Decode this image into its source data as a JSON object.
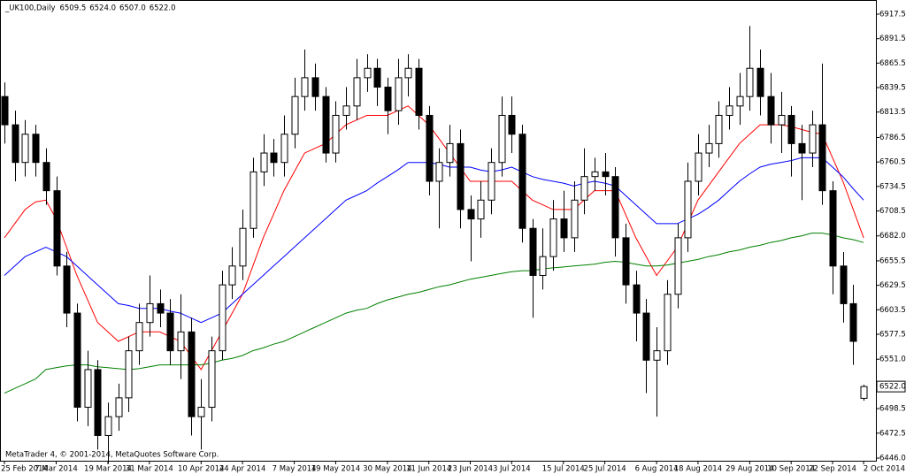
{
  "chart_data": {
    "type": "candlestick",
    "symbol": "_UK100,Daily",
    "header_values": [
      "6509.5",
      "6524.0",
      "6507.0",
      "6522.0"
    ],
    "copyright": "MetaTrader 4, © 2001-2014, MetaQuotes Software Corp.",
    "last_price_label": "6522.0",
    "categories": [
      "25 Feb 2014",
      null,
      null,
      null,
      null,
      "7 Mar 2014",
      null,
      null,
      null,
      null,
      "19 Mar 2014",
      null,
      null,
      null,
      "31 Mar 2014",
      null,
      null,
      null,
      null,
      "10 Apr 2014",
      null,
      null,
      null,
      "24 Apr 2014",
      null,
      null,
      null,
      null,
      "7 May 2014",
      null,
      null,
      null,
      "19 May 2014",
      null,
      null,
      null,
      null,
      "30 May 2014",
      null,
      null,
      null,
      "11 Jun 2014",
      null,
      null,
      null,
      "23 Jun 2014",
      null,
      null,
      null,
      "3 Jul 2014",
      null,
      null,
      null,
      null,
      "15 Jul 2014",
      null,
      null,
      null,
      "25 Jul 2014",
      null,
      null,
      null,
      null,
      "6 Aug 2014",
      null,
      null,
      null,
      "18 Aug 2014",
      null,
      null,
      null,
      null,
      "29 Aug 2014",
      null,
      null,
      null,
      "10 Sep 2014",
      null,
      null,
      null,
      "22 Sep 2014",
      null,
      null,
      "2 Oct 2014"
    ],
    "open": [
      6830,
      6800,
      6760,
      6790,
      6760,
      6730,
      6650,
      6600,
      6500,
      6540,
      6470,
      6490,
      6510,
      6560,
      6590,
      6610,
      6600,
      6560,
      6580,
      6490,
      6500,
      6560,
      6630,
      6650,
      6690,
      6750,
      6770,
      6760,
      6790,
      6830,
      6850,
      6830,
      6770,
      6810,
      6820,
      6850,
      6860,
      6840,
      6815,
      6850,
      6860,
      6810,
      6740,
      6760,
      6780,
      6710,
      6700,
      6720,
      6760,
      6810,
      6790,
      6690,
      6640,
      6660,
      6700,
      6680,
      6720,
      6745,
      6750,
      6745,
      6680,
      6630,
      6600,
      6550,
      6560,
      6620,
      6680,
      6740,
      6770,
      6780,
      6810,
      6820,
      6830,
      6860,
      6830,
      6800,
      6810,
      6780,
      6770,
      6800,
      6730,
      6650,
      6610,
      6509.5
    ],
    "high": [
      6845,
      6815,
      6805,
      6800,
      6775,
      6745,
      6665,
      6610,
      6560,
      6550,
      6505,
      6525,
      6575,
      6610,
      6640,
      6625,
      6615,
      6620,
      6595,
      6530,
      6575,
      6645,
      6670,
      6710,
      6765,
      6790,
      6785,
      6810,
      6850,
      6880,
      6865,
      6840,
      6825,
      6840,
      6870,
      6875,
      6870,
      6850,
      6870,
      6875,
      6870,
      6820,
      6775,
      6800,
      6795,
      6725,
      6740,
      6775,
      6830,
      6830,
      6800,
      6700,
      6690,
      6720,
      6730,
      6740,
      6775,
      6765,
      6770,
      6755,
      6695,
      6645,
      6615,
      6585,
      6635,
      6695,
      6760,
      6790,
      6800,
      6825,
      6840,
      6855,
      6905,
      6880,
      6855,
      6835,
      6820,
      6800,
      6815,
      6865,
      6740,
      6665,
      6630,
      6524.0
    ],
    "low": [
      6780,
      6740,
      6745,
      6745,
      6715,
      6640,
      6585,
      6485,
      6480,
      6455,
      6440,
      6475,
      6495,
      6545,
      6575,
      6585,
      6545,
      6530,
      6470,
      6455,
      6485,
      6550,
      6615,
      6635,
      6680,
      6735,
      6745,
      6745,
      6775,
      6815,
      6815,
      6760,
      6760,
      6795,
      6805,
      6835,
      6820,
      6790,
      6800,
      6830,
      6795,
      6725,
      6690,
      6745,
      6690,
      6655,
      6680,
      6705,
      6745,
      6770,
      6675,
      6595,
      6625,
      6645,
      6665,
      6665,
      6705,
      6730,
      6725,
      6660,
      6610,
      6570,
      6515,
      6490,
      6545,
      6605,
      6665,
      6725,
      6755,
      6765,
      6795,
      6800,
      6815,
      6810,
      6780,
      6770,
      6745,
      6720,
      6755,
      6715,
      6620,
      6590,
      6545,
      6507.0
    ],
    "close": [
      6800,
      6760,
      6790,
      6760,
      6730,
      6650,
      6600,
      6500,
      6540,
      6470,
      6490,
      6510,
      6560,
      6590,
      6610,
      6600,
      6560,
      6580,
      6490,
      6500,
      6560,
      6630,
      6650,
      6690,
      6750,
      6770,
      6760,
      6790,
      6830,
      6850,
      6830,
      6770,
      6810,
      6820,
      6850,
      6860,
      6840,
      6815,
      6850,
      6860,
      6810,
      6740,
      6760,
      6780,
      6710,
      6700,
      6720,
      6760,
      6810,
      6790,
      6690,
      6640,
      6660,
      6700,
      6680,
      6720,
      6745,
      6750,
      6745,
      6680,
      6630,
      6600,
      6550,
      6560,
      6620,
      6680,
      6740,
      6770,
      6780,
      6810,
      6820,
      6830,
      6860,
      6830,
      6800,
      6810,
      6780,
      6770,
      6800,
      6730,
      6650,
      6610,
      6570,
      6522.0
    ],
    "series": [
      {
        "color": "#ff0000",
        "values": [
          6680,
          6695,
          6710,
          6718,
          6720,
          6700,
          6670,
          6640,
          6615,
          6590,
          6580,
          6570,
          6575,
          6580,
          6580,
          6580,
          6575,
          6570,
          6555,
          6540,
          6560,
          6580,
          6600,
          6620,
          6650,
          6680,
          6705,
          6730,
          6750,
          6770,
          6775,
          6780,
          6790,
          6800,
          6805,
          6810,
          6810,
          6810,
          6815,
          6820,
          6810,
          6800,
          6785,
          6770,
          6755,
          6740,
          6740,
          6740,
          6740,
          6740,
          6730,
          6720,
          6715,
          6710,
          6710,
          6710,
          6720,
          6730,
          6730,
          6730,
          6705,
          6680,
          6660,
          6640,
          6655,
          6670,
          6695,
          6720,
          6735,
          6750,
          6765,
          6780,
          6790,
          6800,
          6800,
          6800,
          6798,
          6795,
          6792,
          6790,
          6765,
          6740,
          6710,
          6680
        ]
      },
      {
        "color": "#0000ff",
        "values": [
          6640,
          6650,
          6660,
          6665,
          6670,
          6665,
          6660,
          6650,
          6640,
          6630,
          6620,
          6610,
          6608,
          6605,
          6605,
          6605,
          6602,
          6600,
          6595,
          6590,
          6595,
          6600,
          6610,
          6620,
          6630,
          6640,
          6650,
          6660,
          6670,
          6680,
          6690,
          6700,
          6710,
          6720,
          6725,
          6730,
          6738,
          6745,
          6752,
          6760,
          6760,
          6760,
          6758,
          6755,
          6755,
          6755,
          6752,
          6750,
          6752,
          6755,
          6750,
          6745,
          6742,
          6740,
          6738,
          6735,
          6738,
          6740,
          6738,
          6735,
          6725,
          6715,
          6705,
          6695,
          6695,
          6695,
          6700,
          6705,
          6712,
          6720,
          6730,
          6740,
          6748,
          6755,
          6758,
          6760,
          6762,
          6765,
          6765,
          6765,
          6755,
          6745,
          6732,
          6720
        ]
      },
      {
        "color": "#008000",
        "values": [
          6515,
          6520,
          6525,
          6530,
          6540,
          6542,
          6544,
          6545,
          6545,
          6543,
          6542,
          6541,
          6540,
          6541,
          6543,
          6545,
          6545,
          6545,
          6545,
          6545,
          6547,
          6550,
          6552,
          6555,
          6560,
          6563,
          6567,
          6570,
          6575,
          6580,
          6585,
          6590,
          6595,
          6600,
          6603,
          6605,
          6610,
          6614,
          6617,
          6620,
          6622,
          6625,
          6628,
          6630,
          6633,
          6636,
          6638,
          6640,
          6642,
          6644,
          6645,
          6645,
          6647,
          6648,
          6649,
          6650,
          6651,
          6652,
          6654,
          6655,
          6654,
          6652,
          6650,
          6650,
          6651,
          6653,
          6655,
          6657,
          6660,
          6662,
          6665,
          6667,
          6670,
          6672,
          6675,
          6677,
          6680,
          6682,
          6685,
          6685,
          6683,
          6680,
          6678,
          6675
        ]
      }
    ],
    "ylim": [
      6443.2,
      6931.6
    ],
    "yticks": [
      6917.5,
      6891.5,
      6865.5,
      6839.5,
      6813.5,
      6786.5,
      6760.5,
      6734.5,
      6708.5,
      {
        "value": 6682.0,
        "label": "6682.0"
      },
      6655.5,
      6629.5,
      6603.5,
      6577.5,
      {
        "value": 6551.0,
        "label": "6551.0"
      },
      6498.5,
      6472.5,
      {
        "value": 6446.0,
        "label": "6446.0"
      }
    ]
  }
}
